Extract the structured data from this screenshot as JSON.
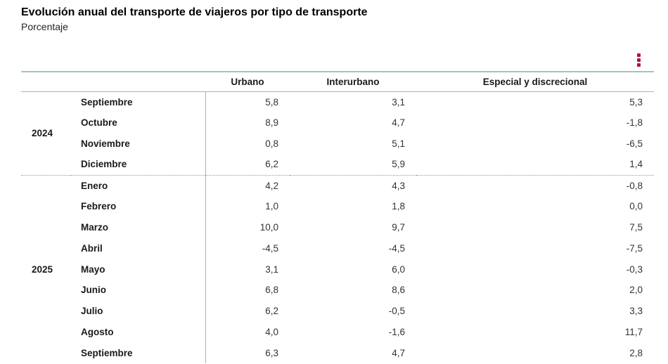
{
  "page": {
    "title": "Evolución anual del transporte de viajeros por tipo de transporte",
    "subtitle": "Porcentaje"
  },
  "toolbar": {
    "menu_icon": "kebab-menu-icon"
  },
  "colors": {
    "accent_red": "#b5123e",
    "table_top_border": "#9dc6bf",
    "header_border": "#b0b0b0",
    "group_divider": "#999999",
    "text_primary": "#1a1a1a",
    "text_values": "#333333"
  },
  "table": {
    "columns": [
      "Urbano",
      "Interurbano",
      "Especial y discrecional"
    ],
    "groups": [
      {
        "year": "2024",
        "rows": [
          {
            "month": "Septiembre",
            "values": [
              "5,8",
              "3,1",
              "5,3"
            ]
          },
          {
            "month": "Octubre",
            "values": [
              "8,9",
              "4,7",
              "-1,8"
            ]
          },
          {
            "month": "Noviembre",
            "values": [
              "0,8",
              "5,1",
              "-6,5"
            ]
          },
          {
            "month": "Diciembre",
            "values": [
              "6,2",
              "5,9",
              "1,4"
            ]
          }
        ]
      },
      {
        "year": "2025",
        "rows": [
          {
            "month": "Enero",
            "values": [
              "4,2",
              "4,3",
              "-0,8"
            ]
          },
          {
            "month": "Febrero",
            "values": [
              "1,0",
              "1,8",
              "0,0"
            ]
          },
          {
            "month": "Marzo",
            "values": [
              "10,0",
              "9,7",
              "7,5"
            ]
          },
          {
            "month": "Abril",
            "values": [
              "-4,5",
              "-4,5",
              "-7,5"
            ]
          },
          {
            "month": "Mayo",
            "values": [
              "3,1",
              "6,0",
              "-0,3"
            ]
          },
          {
            "month": "Junio",
            "values": [
              "6,8",
              "8,6",
              "2,0"
            ]
          },
          {
            "month": "Julio",
            "values": [
              "6,2",
              "-0,5",
              "3,3"
            ]
          },
          {
            "month": "Agosto",
            "values": [
              "4,0",
              "-1,6",
              "11,7"
            ]
          },
          {
            "month": "Septiembre",
            "values": [
              "6,3",
              "4,7",
              "2,8"
            ]
          }
        ]
      }
    ]
  },
  "chart_data": {
    "type": "table",
    "title": "Evolución anual del transporte de viajeros por tipo de transporte",
    "unit_label": "Porcentaje",
    "columns": [
      "Urbano",
      "Interurbano",
      "Especial y discrecional"
    ],
    "categories": [
      "Septiembre 2024",
      "Octubre 2024",
      "Noviembre 2024",
      "Diciembre 2024",
      "Enero 2025",
      "Febrero 2025",
      "Marzo 2025",
      "Abril 2025",
      "Mayo 2025",
      "Junio 2025",
      "Julio 2025",
      "Agosto 2025",
      "Septiembre 2025"
    ],
    "series": [
      {
        "name": "Urbano",
        "values": [
          5.8,
          8.9,
          0.8,
          6.2,
          4.2,
          1.0,
          10.0,
          -4.5,
          3.1,
          6.8,
          6.2,
          4.0,
          6.3
        ]
      },
      {
        "name": "Interurbano",
        "values": [
          3.1,
          4.7,
          5.1,
          5.9,
          4.3,
          1.8,
          9.7,
          -4.5,
          6.0,
          8.6,
          -0.5,
          -1.6,
          4.7
        ]
      },
      {
        "name": "Especial y discrecional",
        "values": [
          5.3,
          -1.8,
          -6.5,
          1.4,
          -0.8,
          0.0,
          7.5,
          -7.5,
          -0.3,
          2.0,
          3.3,
          11.7,
          2.8
        ]
      }
    ]
  }
}
